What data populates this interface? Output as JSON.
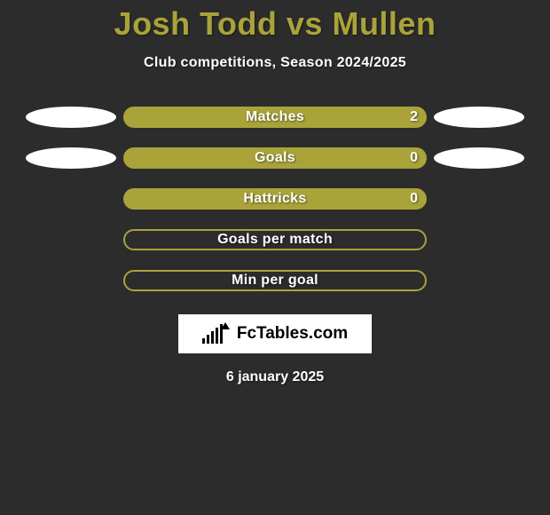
{
  "background_color": "#2c2c2c",
  "title": {
    "player1": "Josh Todd",
    "vs": "vs",
    "player2": "Mullen",
    "color": "#a9a33a",
    "fontsize": 36
  },
  "subtitle": {
    "text": "Club competitions, Season 2024/2025",
    "color": "#ffffff",
    "fontsize": 16
  },
  "rows": [
    {
      "label": "Matches",
      "value": "2",
      "filled": true,
      "pill_color": "#a9a33a",
      "show_value": true,
      "left_ellipse": true,
      "left_ellipse_color": "#ffffff",
      "right_ellipse": true,
      "right_ellipse_color": "#ffffff"
    },
    {
      "label": "Goals",
      "value": "0",
      "filled": true,
      "pill_color": "#a9a33a",
      "show_value": true,
      "left_ellipse": true,
      "left_ellipse_color": "#ffffff",
      "right_ellipse": true,
      "right_ellipse_color": "#ffffff"
    },
    {
      "label": "Hattricks",
      "value": "0",
      "filled": true,
      "pill_color": "#a9a33a",
      "show_value": true,
      "left_ellipse": false,
      "right_ellipse": false
    },
    {
      "label": "Goals per match",
      "value": "",
      "filled": false,
      "pill_border_color": "#a9a33a",
      "show_value": false,
      "left_ellipse": false,
      "right_ellipse": false
    },
    {
      "label": "Min per goal",
      "value": "",
      "filled": false,
      "pill_border_color": "#a9a33a",
      "show_value": false,
      "left_ellipse": false,
      "right_ellipse": false
    }
  ],
  "pill_width": 342,
  "pill_height": 24,
  "ellipse_width": 102,
  "ellipse_height": 24,
  "logo": {
    "text": "FcTables.com",
    "bg": "#ffffff",
    "text_color": "#000000"
  },
  "date": {
    "text": "6 january 2025",
    "color": "#ffffff"
  }
}
